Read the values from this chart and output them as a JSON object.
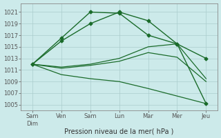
{
  "background_color": "#cceaea",
  "grid_color": "#aacccc",
  "line_color": "#1a6b2a",
  "xlabel": "Pression niveau de la mer( hPa )",
  "xtick_labels": [
    "Sam\nDim",
    "Ven",
    "Sam",
    "Lun",
    "Mar",
    "Mer",
    "Jeu"
  ],
  "xtick_positions": [
    0,
    1,
    2,
    3,
    4,
    5,
    6
  ],
  "ylim": [
    1004,
    1022.5
  ],
  "yticks": [
    1005,
    1007,
    1009,
    1011,
    1013,
    1015,
    1017,
    1019,
    1021
  ],
  "lines": [
    {
      "x": [
        0,
        1,
        2,
        3,
        4,
        5,
        6
      ],
      "y": [
        1012.0,
        1016.5,
        1021.0,
        1020.8,
        1017.0,
        1015.5,
        1005.2
      ],
      "marker": "D",
      "markersize": 2.5,
      "linewidth": 1.0
    },
    {
      "x": [
        0,
        1,
        2,
        3,
        4,
        5,
        6
      ],
      "y": [
        1012.0,
        1016.0,
        1019.0,
        1021.0,
        1019.5,
        1015.5,
        1013.0
      ],
      "marker": "D",
      "markersize": 2.5,
      "linewidth": 1.0
    },
    {
      "x": [
        0,
        1,
        2,
        3,
        4,
        5,
        6
      ],
      "y": [
        1012.0,
        1011.5,
        1012.0,
        1013.0,
        1015.0,
        1015.5,
        1009.5
      ],
      "marker": null,
      "markersize": 0,
      "linewidth": 0.9
    },
    {
      "x": [
        0,
        1,
        2,
        3,
        4,
        5,
        6
      ],
      "y": [
        1012.0,
        1011.3,
        1011.8,
        1012.5,
        1014.0,
        1013.2,
        1009.0
      ],
      "marker": null,
      "markersize": 0,
      "linewidth": 0.9
    },
    {
      "x": [
        0,
        1,
        2,
        3,
        4,
        5,
        6
      ],
      "y": [
        1012.0,
        1010.2,
        1009.5,
        1009.0,
        1007.8,
        1006.5,
        1005.2
      ],
      "marker": null,
      "markersize": 0,
      "linewidth": 0.9
    }
  ],
  "figsize": [
    3.2,
    2.0
  ],
  "dpi": 100,
  "tick_fontsize": 6,
  "xlabel_fontsize": 7
}
